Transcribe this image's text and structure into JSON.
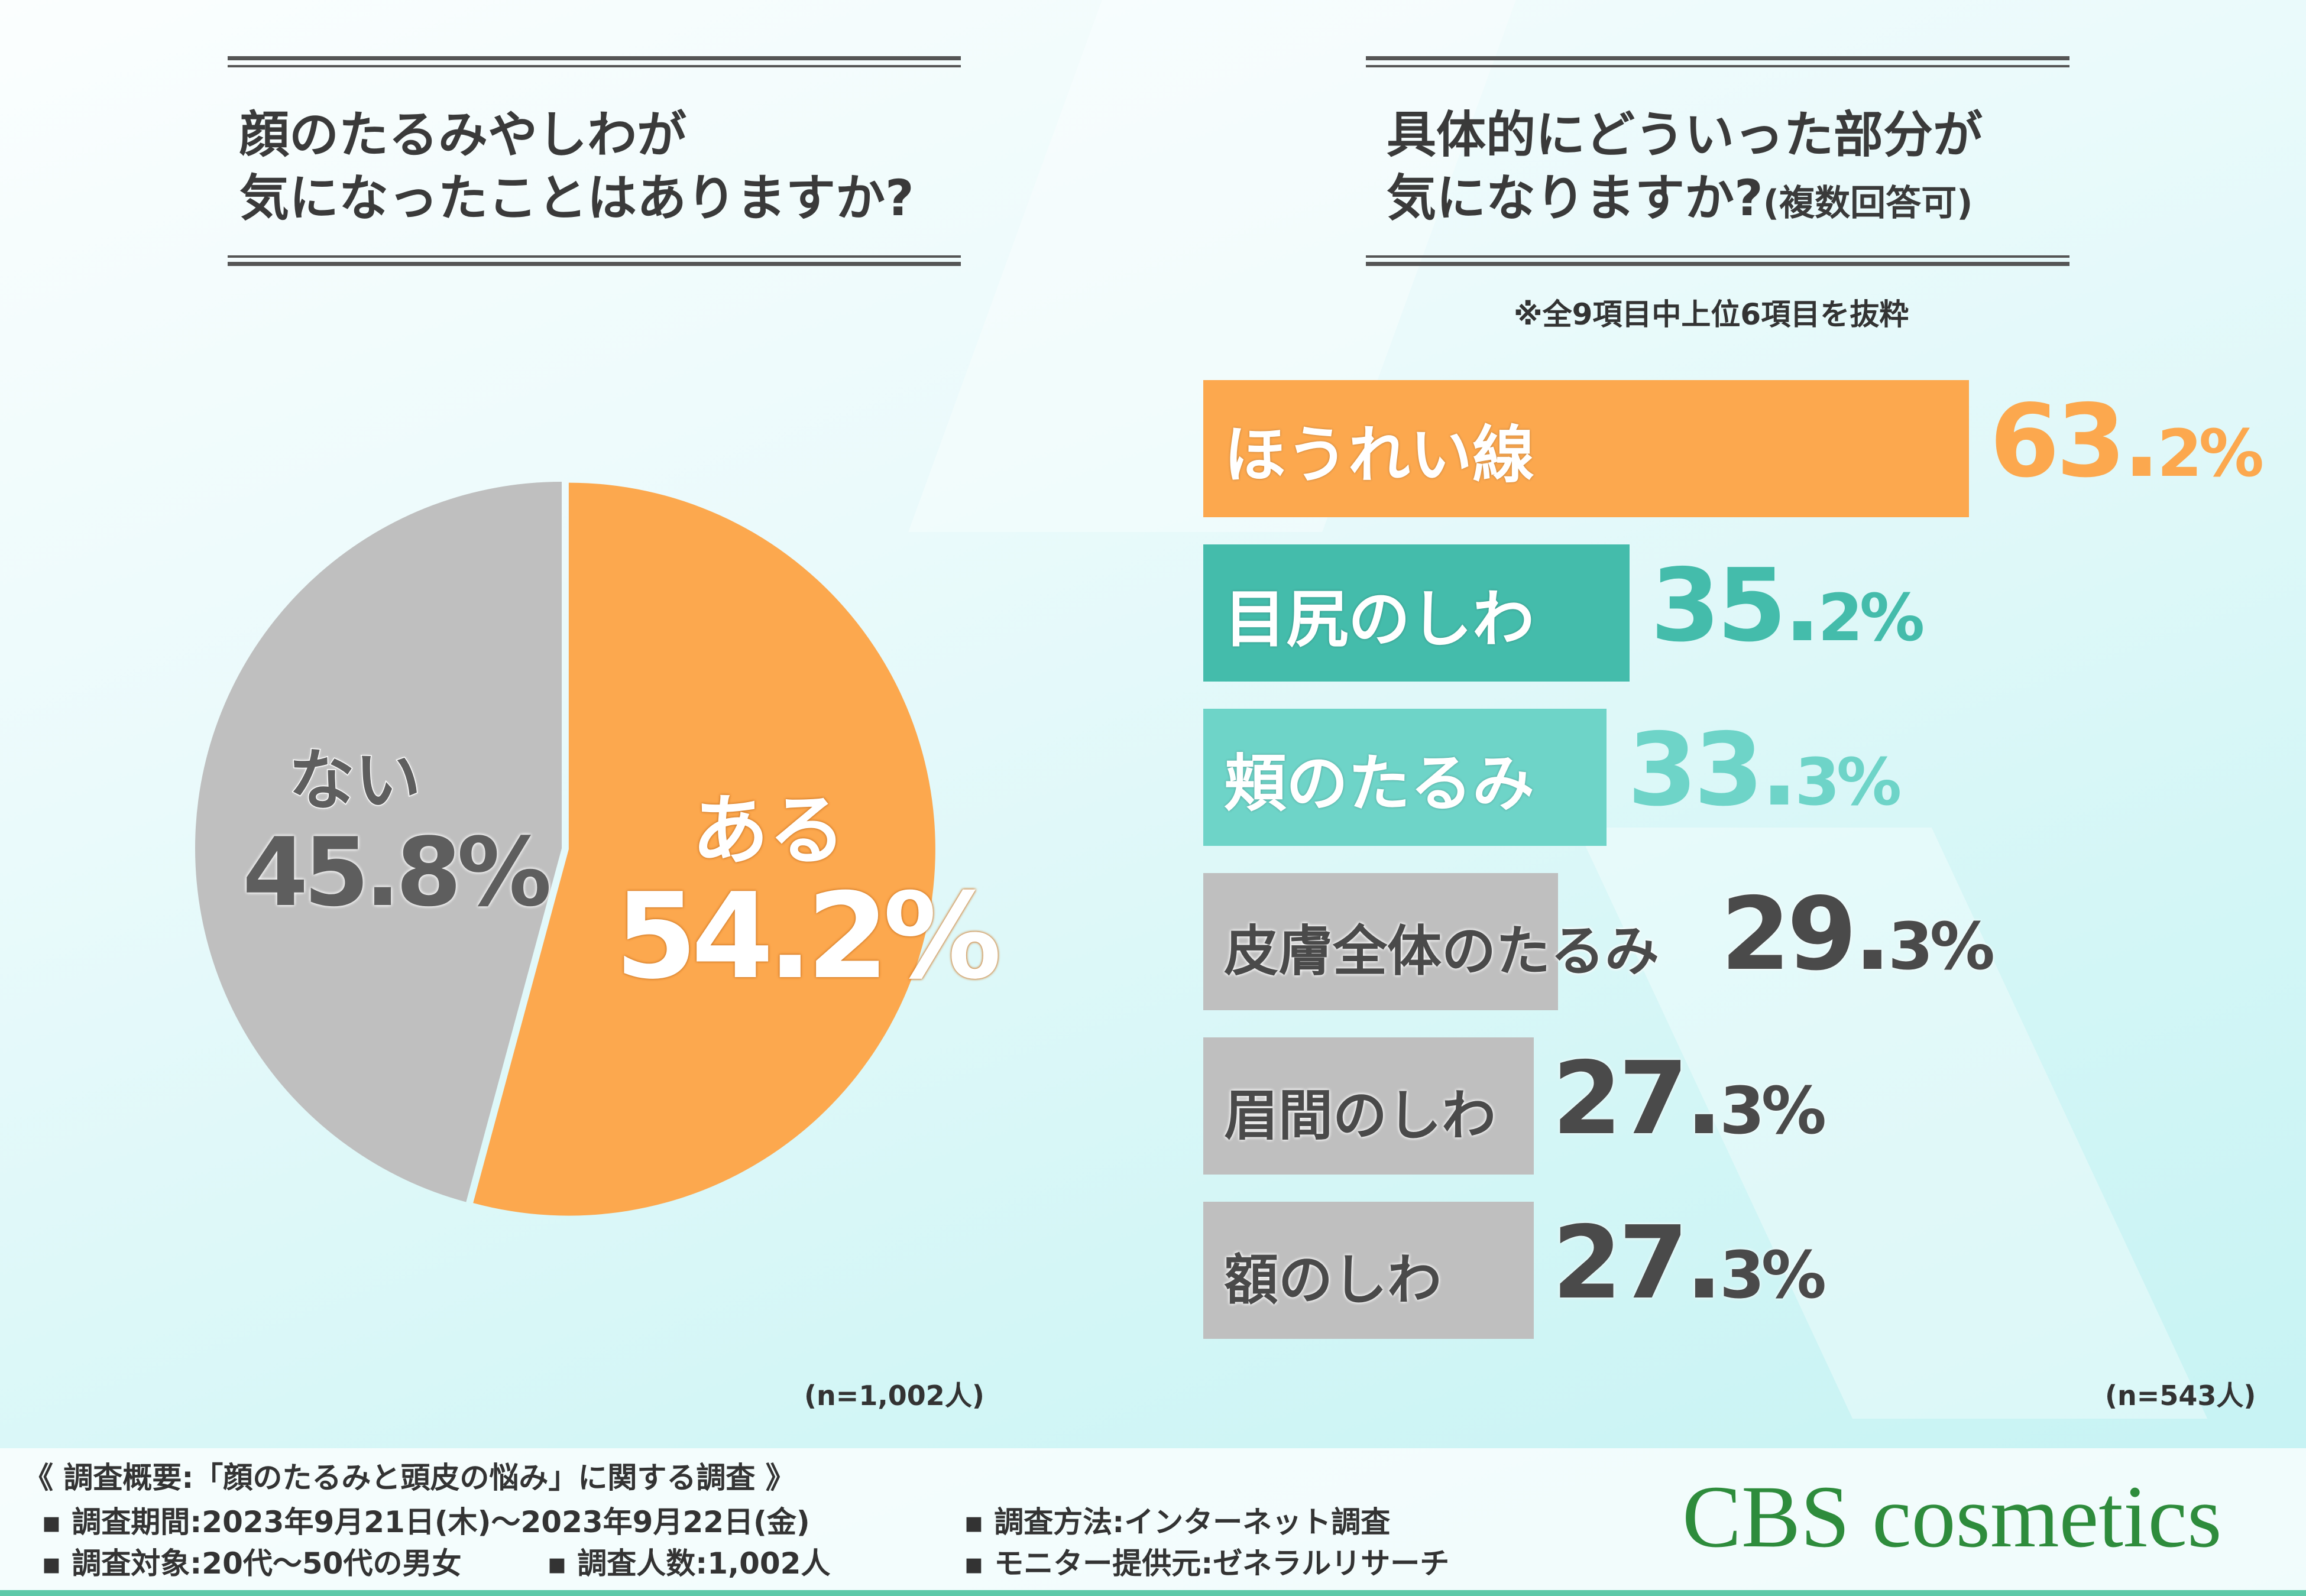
{
  "colors": {
    "orange": "#fca84e",
    "gray": "#bfbfbf",
    "teal_dark": "#44bcab",
    "teal_light": "#6ed4c8",
    "text_dark": "#4a4a4a",
    "logo_green": "#2e8c3c"
  },
  "left": {
    "question_line1": "顔のたるみやしわが",
    "question_line2": "気になったことはありますか?",
    "n_label": "(n=1,002人)"
  },
  "right": {
    "question_line1": "具体的にどういった部分が",
    "question_line2": "気になりますか?",
    "question_suffix": "(複数回答可)",
    "note": "※全9項目中上位6項目を抜粋",
    "n_label": "(n=543人)"
  },
  "chart_data": [
    {
      "type": "pie",
      "slices": [
        {
          "label": "ある",
          "value": 54.2,
          "display": "54.2%",
          "color": "#fca84e"
        },
        {
          "label": "ない",
          "value": 45.8,
          "display": "45.8%",
          "color": "#bfbfbf"
        }
      ]
    },
    {
      "type": "bar",
      "orientation": "horizontal",
      "categories": [
        "ほうれい線",
        "目尻のしわ",
        "頬のたるみ",
        "皮膚全体のたるみ",
        "眉間のしわ",
        "額のしわ"
      ],
      "values": [
        63.2,
        35.2,
        33.3,
        29.3,
        27.3,
        27.3
      ],
      "value_labels": [
        {
          "int": "63.",
          "dec": "2%"
        },
        {
          "int": "35.",
          "dec": "2%"
        },
        {
          "int": "33.",
          "dec": "3%"
        },
        {
          "int": "29.",
          "dec": "3%"
        },
        {
          "int": "27.",
          "dec": "3%"
        },
        {
          "int": "27.",
          "dec": "3%"
        }
      ],
      "bar_colors": [
        "#fca84e",
        "#44bcab",
        "#6ed4c8",
        "#bfbfbf",
        "#bfbfbf",
        "#bfbfbf"
      ]
    }
  ],
  "footer": {
    "title": "《 調査概要:「顔のたるみと頭皮の悩み」に関する調査 》",
    "period": "▪ 調査期間:2023年9月21日(木)〜2023年9月22日(金)",
    "method": "▪ 調査方法:インターネット調査",
    "target": "▪ 調査対象:20代〜50代の男女",
    "count": "▪ 調査人数:1,002人",
    "provider": "▪ モニター提供元:ゼネラルリサーチ",
    "logo": "CBS cosmetics"
  }
}
